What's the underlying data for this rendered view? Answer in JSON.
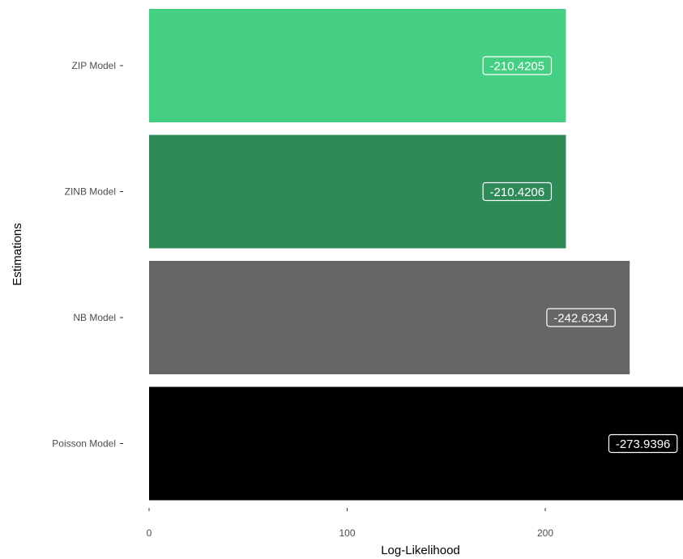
{
  "chart_data": {
    "type": "bar",
    "orientation": "horizontal",
    "categories": [
      "ZIP Model",
      "ZINB Model",
      "NB Model",
      "Poisson Model"
    ],
    "values": [
      210.4205,
      210.4206,
      242.6234,
      273.9396
    ],
    "data_labels": [
      "-210.4205",
      "-210.4206",
      "-242.6234",
      "-273.9396"
    ],
    "colors": [
      "#45cf83",
      "#2e8a57",
      "#666666",
      "#000000"
    ],
    "xlabel": "Log-Likelihood",
    "ylabel": "Estimations",
    "x_ticks": [
      0,
      100,
      200
    ],
    "x_tick_labels": [
      "0",
      "100",
      "200"
    ],
    "xlim": [
      0,
      270
    ],
    "grid": false,
    "legend": "none"
  }
}
